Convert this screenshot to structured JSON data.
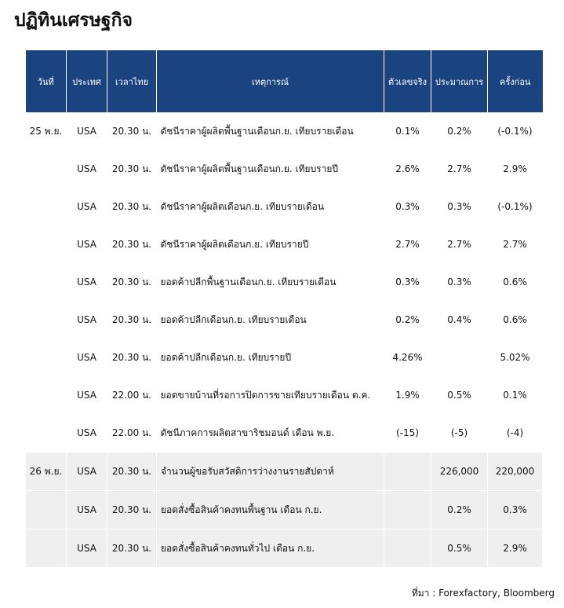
{
  "header": {
    "title": "ปฏิทินเศรษฐกิจ"
  },
  "table": {
    "columns": [
      "วันที่",
      "ประเทศ",
      "เวลาไทย",
      "เหตุการณ์",
      "ตัวเลขจริง",
      "ประมาณการ",
      "ครั้งก่อน"
    ],
    "rows": [
      [
        "25 พ.ย.",
        "USA",
        "20.30 น.",
        "ดัชนีราคาผู้ผลิตพื้นฐานเดือนก.ย. เทียบรายเดือน",
        "0.1%",
        "0.2%",
        "(-0.1%)"
      ],
      [
        null,
        "USA",
        "20.30 น.",
        "ดัชนีราคาผู้ผลิตพื้นฐานเดือนก.ย. เทียบรายปี",
        "2.6%",
        "2.7%",
        "2.9%"
      ],
      [
        null,
        "USA",
        "20.30 น.",
        "ดัชนีราคาผู้ผลิตเดือนก.ย. เทียบรายเดือน",
        "0.3%",
        "0.3%",
        "(-0.1%)"
      ],
      [
        null,
        "USA",
        "20.30 น.",
        "ดัชนีราคาผู้ผลิตเดือนก.ย. เทียบรายปี",
        "2.7%",
        "2.7%",
        "2.7%"
      ],
      [
        null,
        "USA",
        "20.30 น.",
        "ยอดค้าปลีกพื้นฐานเดือนก.ย. เทียบรายเดือน",
        "0.3%",
        "0.3%",
        "0.6%"
      ],
      [
        null,
        "USA",
        "20.30 น.",
        "ยอดค้าปลีกเดือนก.ย. เทียบรายเดือน",
        "0.2%",
        "0.4%",
        "0.6%"
      ],
      [
        null,
        "USA",
        "20.30 น.",
        "ยอดค้าปลีกเดือนก.ย. เทียบรายปี",
        "4.26%",
        null,
        "5.02%"
      ],
      [
        null,
        "USA",
        "22.00 น.",
        "ยอดขายบ้านที่รอการปิดการขายเทียบรายเดือน ต.ค.",
        "1.9%",
        "0.5%",
        "0.1%"
      ],
      [
        null,
        "USA",
        "22.00 น.",
        "ดัชนีภาคการผลิตสาขาริชมอนด์ เดือน พ.ย.",
        "(-15)",
        "(-5)",
        "(-4)"
      ],
      [
        "26 พ.ย.",
        "USA",
        "20.30 น.",
        "จำนวนผู้ขอรับสวัสดิการว่างงานรายสัปดาห์",
        null,
        "226,000",
        "220,000"
      ],
      [
        null,
        "USA",
        "20.30 น.",
        "ยอดสั่งซื้อสินค้าคงทนพื้นฐาน เดือน ก.ย.",
        null,
        "0.2%",
        "0.3%"
      ],
      [
        null,
        "USA",
        "20.30 น.",
        "ยอดสั่งซื้อสินค้าคงทนทั่วไป เดือน ก.ย.",
        null,
        "0.5%",
        "2.9%"
      ]
    ]
  },
  "footer": {
    "source": "ที่มา : Forexfactory, Bloomberg"
  }
}
